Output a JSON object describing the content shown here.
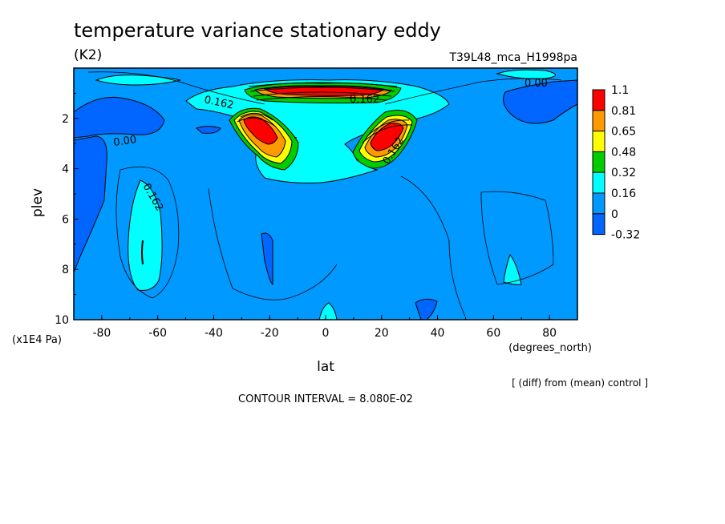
{
  "chart_data": {
    "type": "contour",
    "title": "temperature variance stationary eddy",
    "units": "(K2)",
    "experiment": "T39L48_mca_H1998pa",
    "xlabel": "lat",
    "xunits": "(degrees_north)",
    "ylabel": "plev",
    "yunits": "(x1E4 Pa)",
    "xlim": [
      -90,
      90
    ],
    "ylim": [
      10,
      0
    ],
    "xticks": [
      "-80",
      "-60",
      "-40",
      "-20",
      "0",
      "20",
      "40",
      "60",
      "80"
    ],
    "yticks": [
      "2",
      "4",
      "6",
      "8",
      "10"
    ],
    "contour_interval_text": "CONTOUR INTERVAL = 8.080E-02",
    "note": "[ (diff) from (mean) control ]",
    "contour_labels": [
      "0.162",
      "0.00",
      "0.162",
      "0.162",
      "0.162",
      "0.00"
    ],
    "colorbar": {
      "levels": [
        "1.1",
        "0.81",
        "0.65",
        "0.48",
        "0.32",
        "0.16",
        "0",
        "-0.32"
      ],
      "colors": [
        "#ff0000",
        "#ff9900",
        "#ffff00",
        "#00cc00",
        "#00ffff",
        "#0099ff",
        "#0066ff"
      ]
    }
  }
}
